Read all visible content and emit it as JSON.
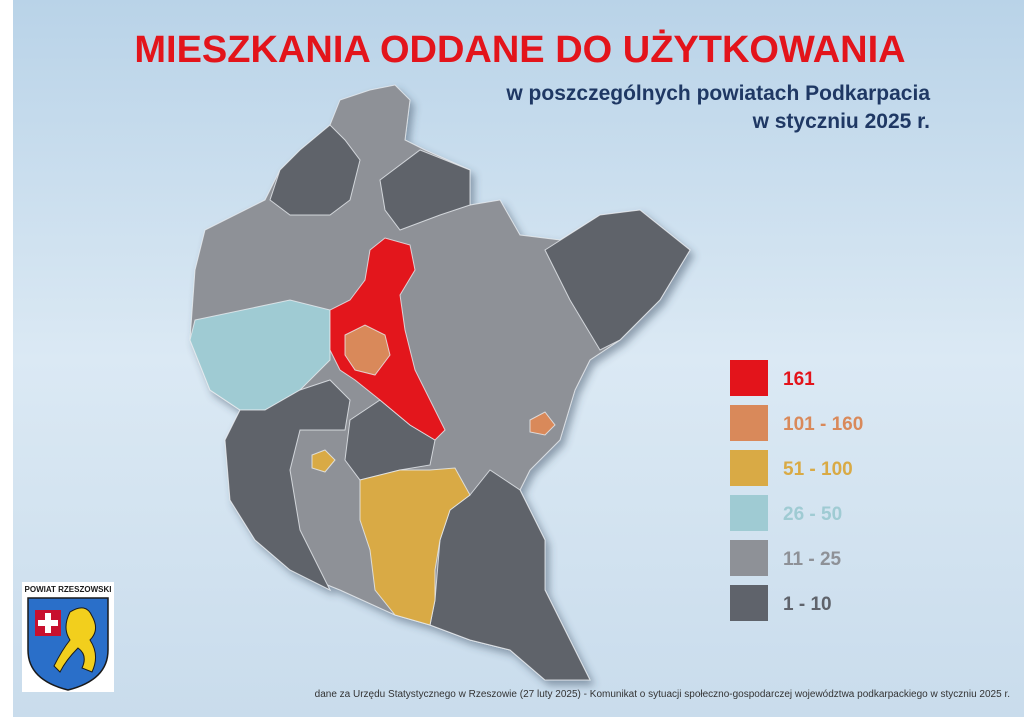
{
  "header": {
    "title": "MIESZKANIA ODDANE DO UŻYTKOWANIA",
    "subtitle_lines": [
      "w poszczególnych powiatach Podkarpacia",
      "w styczniu 2025 r."
    ]
  },
  "legend": {
    "items": [
      {
        "label": "161",
        "color": "#e3141b"
      },
      {
        "label": "101 - 160",
        "color": "#d9895a"
      },
      {
        "label": "51 - 100",
        "color": "#d9aa45"
      },
      {
        "label": "26 - 50",
        "color": "#9fcbd3"
      },
      {
        "label": "11 - 25",
        "color": "#8e9197"
      },
      {
        "label": "1 - 10",
        "color": "#5f636b"
      }
    ]
  },
  "logo": {
    "label": "POWIAT RZESZOWSKI"
  },
  "footer": {
    "source": "dane za Urzędu Statystycznego w Rzeszowie (27 luty 2025) - Komunikat o sytuacji społeczno-gospodarczej województwa podkarpackiego w styczniu 2025 r."
  }
}
